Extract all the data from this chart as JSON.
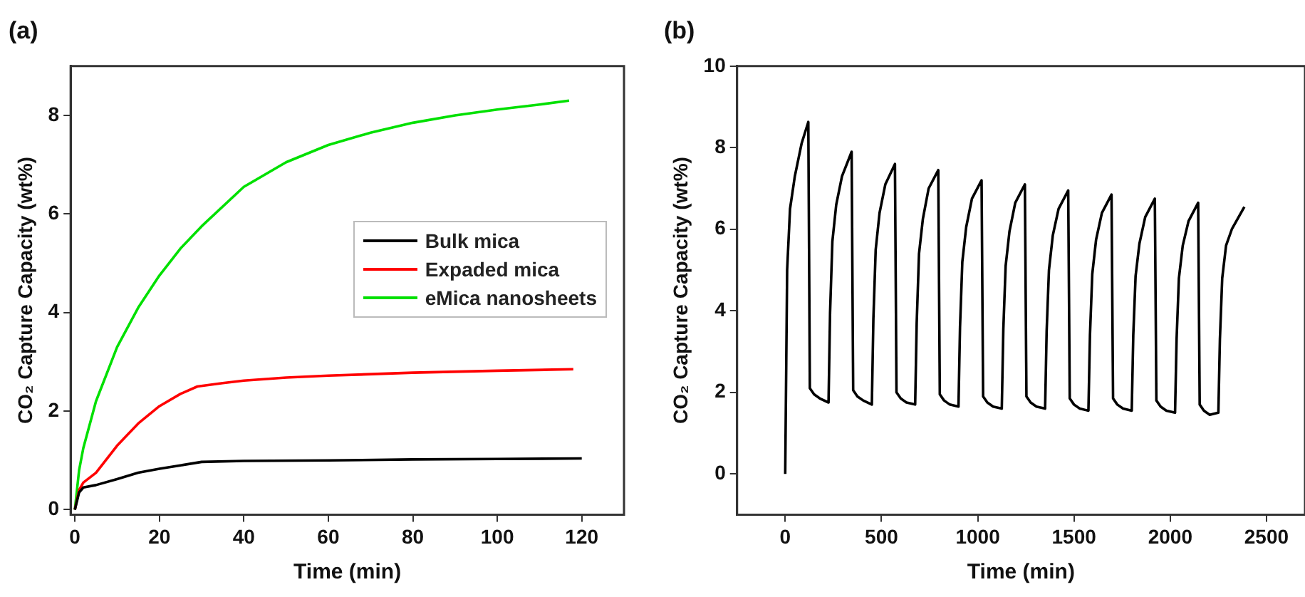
{
  "chart_data": [
    {
      "type": "line",
      "title": "(a)",
      "xlabel": "Time (min)",
      "ylabel": "CO₂ Capture Capacity (wt%)",
      "xlim": [
        -1,
        130
      ],
      "ylim": [
        -0.1,
        9
      ],
      "xticks": [
        0,
        20,
        40,
        60,
        80,
        100,
        120
      ],
      "yticks": [
        0,
        2,
        4,
        6,
        8
      ],
      "grid": false,
      "legend": "right",
      "marker": "none",
      "line_style": "solid",
      "series": [
        {
          "name": "Bulk mica",
          "color": "#000000",
          "x": [
            0,
            1,
            2,
            5,
            10,
            15,
            20,
            25,
            30,
            40,
            60,
            80,
            100,
            120
          ],
          "values": [
            0,
            0.35,
            0.45,
            0.5,
            0.62,
            0.75,
            0.83,
            0.9,
            0.97,
            0.99,
            1.0,
            1.02,
            1.03,
            1.04
          ]
        },
        {
          "name": "Expaded mica",
          "color": "#ff0000",
          "x": [
            0,
            1,
            2,
            5,
            10,
            15,
            20,
            25,
            29,
            35,
            40,
            50,
            60,
            80,
            100,
            118
          ],
          "values": [
            0,
            0.4,
            0.55,
            0.75,
            1.3,
            1.75,
            2.1,
            2.35,
            2.5,
            2.57,
            2.62,
            2.68,
            2.72,
            2.78,
            2.82,
            2.85
          ]
        },
        {
          "name": "eMica nanosheets",
          "color": "#00e000",
          "x": [
            0,
            1,
            2,
            5,
            10,
            15,
            20,
            25,
            30,
            40,
            50,
            60,
            70,
            80,
            90,
            100,
            110,
            117
          ],
          "values": [
            0,
            0.8,
            1.25,
            2.2,
            3.3,
            4.1,
            4.75,
            5.3,
            5.75,
            6.55,
            7.05,
            7.4,
            7.65,
            7.85,
            8.0,
            8.12,
            8.22,
            8.3
          ]
        }
      ]
    },
    {
      "type": "line",
      "title": "(b)",
      "xlabel": "Time (min)",
      "ylabel": "CO₂ Capture Capacity (wt%)",
      "xlim": [
        -250,
        2700
      ],
      "ylim": [
        -1,
        10
      ],
      "xticks": [
        0,
        500,
        1000,
        1500,
        2000,
        2500
      ],
      "yticks": [
        0,
        2,
        4,
        6,
        8,
        10
      ],
      "grid": false,
      "legend": false,
      "marker": "none",
      "line_style": "solid",
      "series": [
        {
          "color": "#000000",
          "x": [
            0,
            10,
            25,
            50,
            85,
            120,
            128,
            150,
            180,
            225,
            233,
            245,
            265,
            295,
            345,
            353,
            375,
            405,
            450,
            458,
            470,
            490,
            520,
            570,
            578,
            600,
            630,
            675,
            683,
            695,
            715,
            745,
            795,
            803,
            825,
            855,
            900,
            908,
            920,
            940,
            970,
            1020,
            1028,
            1050,
            1080,
            1125,
            1133,
            1145,
            1165,
            1195,
            1245,
            1253,
            1275,
            1305,
            1350,
            1358,
            1370,
            1390,
            1420,
            1470,
            1478,
            1500,
            1530,
            1575,
            1583,
            1595,
            1615,
            1645,
            1695,
            1703,
            1725,
            1755,
            1800,
            1808,
            1820,
            1840,
            1870,
            1920,
            1928,
            1950,
            1980,
            2025,
            2033,
            2045,
            2065,
            2095,
            2145,
            2153,
            2175,
            2205,
            2250,
            2258,
            2270,
            2290,
            2320,
            2385
          ],
          "values": [
            0,
            5.0,
            6.5,
            7.3,
            8.1,
            8.63,
            2.1,
            1.95,
            1.85,
            1.75,
            3.95,
            5.7,
            6.6,
            7.3,
            7.9,
            2.05,
            1.9,
            1.8,
            1.7,
            3.8,
            5.5,
            6.4,
            7.1,
            7.6,
            2.0,
            1.85,
            1.75,
            1.7,
            3.7,
            5.4,
            6.25,
            7.0,
            7.45,
            1.95,
            1.8,
            1.7,
            1.65,
            3.6,
            5.2,
            6.05,
            6.75,
            7.2,
            1.9,
            1.75,
            1.65,
            1.6,
            3.55,
            5.1,
            5.95,
            6.65,
            7.1,
            1.9,
            1.75,
            1.65,
            1.6,
            3.5,
            5.0,
            5.85,
            6.5,
            6.95,
            1.85,
            1.7,
            1.6,
            1.55,
            3.4,
            4.9,
            5.75,
            6.4,
            6.85,
            1.85,
            1.7,
            1.6,
            1.55,
            3.4,
            4.85,
            5.65,
            6.3,
            6.75,
            1.8,
            1.65,
            1.55,
            1.5,
            3.3,
            4.8,
            5.6,
            6.2,
            6.65,
            1.7,
            1.55,
            1.45,
            1.5,
            3.3,
            4.8,
            5.6,
            6.0,
            6.55
          ]
        }
      ]
    }
  ]
}
